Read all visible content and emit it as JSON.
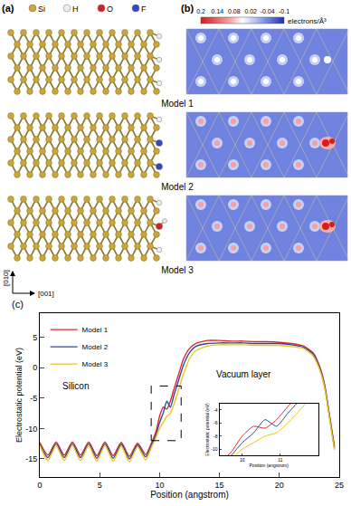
{
  "panel_a": {
    "label": "(a)",
    "legend": [
      {
        "name": "Si",
        "color": "#c9a53a"
      },
      {
        "name": "H",
        "color": "#eeeeee"
      },
      {
        "name": "O",
        "color": "#d42020"
      },
      {
        "name": "F",
        "color": "#3346c4"
      }
    ],
    "models": [
      "Model 1",
      "Model 2",
      "Model 3"
    ],
    "axes": [
      "[010]",
      "[001]"
    ]
  },
  "panel_b": {
    "label": "(b)",
    "colorbar": {
      "range": [
        -0.1,
        0.2
      ],
      "ticks": [
        0.2,
        0.14,
        0.08,
        0.02,
        -0.04,
        -0.1
      ],
      "label": "electrons/Å³"
    }
  },
  "chart_data": {
    "type": "line",
    "label": "(c)",
    "xlabel": "Position (angstrom)",
    "ylabel": "Electrostatic potential (eV)",
    "x": [
      0,
      0.68,
      1.36,
      2.04,
      2.72,
      3.4,
      4.08,
      4.76,
      5.44,
      6.12,
      6.8,
      7.48,
      8.16,
      8.84,
      9.3,
      9.7,
      10.0,
      10.3,
      10.6,
      10.9,
      11.2,
      11.6,
      12.0,
      12.5,
      13.0,
      14.0,
      15.0,
      16.0,
      17.0,
      18.0,
      19.0,
      20.0,
      21.0,
      22.0,
      22.8,
      23.4,
      23.8,
      24.2,
      24.6
    ],
    "series": [
      {
        "name": "Model 1",
        "color": "#e4262b",
        "values": [
          -12.3,
          -14.4,
          -12.2,
          -14.4,
          -12.2,
          -14.4,
          -12.2,
          -14.5,
          -12.2,
          -14.5,
          -12.3,
          -14.6,
          -12.4,
          -14.3,
          -12.5,
          -10.5,
          -8.0,
          -6.5,
          -6.8,
          -5.5,
          -3.5,
          -1.0,
          1.5,
          3.2,
          4.0,
          4.5,
          4.5,
          4.4,
          4.4,
          4.3,
          4.3,
          4.2,
          4.0,
          3.6,
          2.5,
          0.0,
          -3.0,
          -8.0,
          -13.0
        ]
      },
      {
        "name": "Model 2",
        "color": "#2b4c9a",
        "values": [
          -12.6,
          -14.8,
          -12.5,
          -14.8,
          -12.5,
          -14.8,
          -12.5,
          -14.9,
          -12.5,
          -14.9,
          -12.6,
          -15.0,
          -12.7,
          -14.7,
          -12.8,
          -11.0,
          -9.0,
          -7.5,
          -5.5,
          -6.5,
          -4.5,
          -2.0,
          0.5,
          2.5,
          3.5,
          4.0,
          4.1,
          4.1,
          4.1,
          4.0,
          4.0,
          4.0,
          3.8,
          3.4,
          2.3,
          -0.2,
          -3.2,
          -8.2,
          -13.2
        ]
      },
      {
        "name": "Model 3",
        "color": "#ecc41c",
        "values": [
          -12.8,
          -15.3,
          -12.8,
          -15.3,
          -12.8,
          -15.3,
          -12.8,
          -15.4,
          -12.8,
          -15.4,
          -12.9,
          -15.5,
          -13.0,
          -15.2,
          -13.2,
          -11.5,
          -10.0,
          -9.0,
          -8.0,
          -7.5,
          -6.0,
          -3.5,
          -1.0,
          1.5,
          2.8,
          3.6,
          3.8,
          3.8,
          3.8,
          3.7,
          3.7,
          3.7,
          3.5,
          3.2,
          2.0,
          -0.5,
          -3.5,
          -8.5,
          -13.5
        ]
      }
    ],
    "xlim": [
      0,
      25
    ],
    "xticks": [
      0,
      5,
      10,
      15,
      20,
      25
    ],
    "ylim": [
      -18,
      9
    ],
    "yticks": [
      -15,
      -10,
      -5,
      0,
      5
    ],
    "legend": "upper left",
    "annotations": [
      {
        "text": "Silicon",
        "x": 3,
        "y": -3
      },
      {
        "text": "Vacuum layer",
        "x": 17,
        "y": -1
      }
    ],
    "zoom_box": {
      "x": [
        9.3,
        11.8
      ],
      "y": [
        -12,
        -3
      ]
    },
    "inset": {
      "xlabel": "Position (angstrom)",
      "ylabel": "Electrostatic potential (eV)",
      "xlim": [
        9.4,
        12
      ],
      "xticks": [
        10,
        11
      ],
      "ylim": [
        -11,
        -3
      ],
      "yticks": [
        -10,
        -8,
        -6,
        -4
      ]
    }
  }
}
